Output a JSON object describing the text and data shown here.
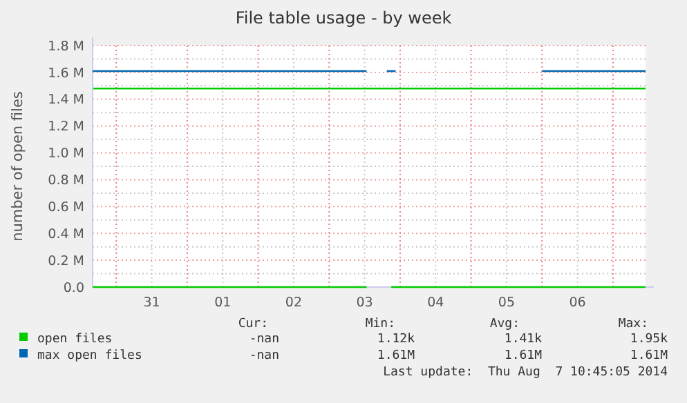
{
  "chart_data": {
    "type": "line",
    "title": "File table usage - by week",
    "ylabel": "number of open files",
    "x": [
      "2014-07-30T16:00",
      "2014-08-03T12:40",
      "2014-08-03T16:00",
      "2014-08-03T21:00",
      "2014-08-07T11:00"
    ],
    "series": [
      {
        "name": "open files",
        "color": "#00cc00",
        "values": [
          0,
          0,
          null,
          0,
          0
        ]
      },
      {
        "name": "max open files",
        "color": "#0066b3",
        "x": [
          "2014-07-30T16:00",
          "2014-08-03T12:40",
          "2014-08-03T16:00",
          "2014-08-03T19:30",
          "2014-08-03T22:30",
          "2014-08-04T12:00",
          "2014-08-06T00:00",
          "2014-08-07T11:00"
        ],
        "values": [
          1610000,
          1610000,
          null,
          1610000,
          1610000,
          null,
          1610000,
          1610000
        ]
      }
    ],
    "xlim": [
      "2014-07-30T16:00",
      "2014-08-07T11:00"
    ],
    "xticks": [
      {
        "value": "2014-07-31T00:00",
        "label": null
      },
      {
        "value": "2014-07-31T12:00",
        "label": "31"
      },
      {
        "value": "2014-08-01T00:00",
        "label": null
      },
      {
        "value": "2014-08-01T12:00",
        "label": "01"
      },
      {
        "value": "2014-08-02T00:00",
        "label": null
      },
      {
        "value": "2014-08-02T12:00",
        "label": "02"
      },
      {
        "value": "2014-08-03T00:00",
        "label": null
      },
      {
        "value": "2014-08-03T12:00",
        "label": "03"
      },
      {
        "value": "2014-08-04T00:00",
        "label": null
      },
      {
        "value": "2014-08-04T12:00",
        "label": "04"
      },
      {
        "value": "2014-08-05T00:00",
        "label": null
      },
      {
        "value": "2014-08-05T12:00",
        "label": "05"
      },
      {
        "value": "2014-08-06T00:00",
        "label": null
      },
      {
        "value": "2014-08-06T12:00",
        "label": "06"
      },
      {
        "value": "2014-08-07T00:00",
        "label": null
      }
    ],
    "ylim": [
      0,
      1800000
    ],
    "yticks": [
      {
        "value": 0,
        "label": "0.0"
      },
      {
        "value": 100000,
        "label": null
      },
      {
        "value": 200000,
        "label": "0.2 M"
      },
      {
        "value": 300000,
        "label": null
      },
      {
        "value": 400000,
        "label": "0.4 M"
      },
      {
        "value": 500000,
        "label": null
      },
      {
        "value": 600000,
        "label": "0.6 M"
      },
      {
        "value": 700000,
        "label": null
      },
      {
        "value": 800000,
        "label": "0.8 M"
      },
      {
        "value": 900000,
        "label": null
      },
      {
        "value": 1000000,
        "label": "1.0 M"
      },
      {
        "value": 1100000,
        "label": null
      },
      {
        "value": 1200000,
        "label": "1.2 M"
      },
      {
        "value": 1300000,
        "label": null
      },
      {
        "value": 1400000,
        "label": "1.4 M"
      },
      {
        "value": 1500000,
        "label": null
      },
      {
        "value": 1600000,
        "label": "1.6 M"
      },
      {
        "value": 1700000,
        "label": null
      },
      {
        "value": 1800000,
        "label": "1.8 M"
      }
    ],
    "ref_lines": [
      {
        "axis": "y",
        "value": 1480000,
        "color": "#00cc00"
      }
    ],
    "grid": true,
    "legend": "bottom",
    "marker": "none",
    "line_style": "solid",
    "annotations": [
      "Cur:",
      "Min:",
      "Avg:",
      "Max:",
      "-nan",
      "1.12k",
      "1.41k",
      "1.95k",
      "-nan",
      "1.61M",
      "1.61M",
      "1.61M",
      "Last update:  Thu Aug  7 10:45:05 2014"
    ]
  }
}
